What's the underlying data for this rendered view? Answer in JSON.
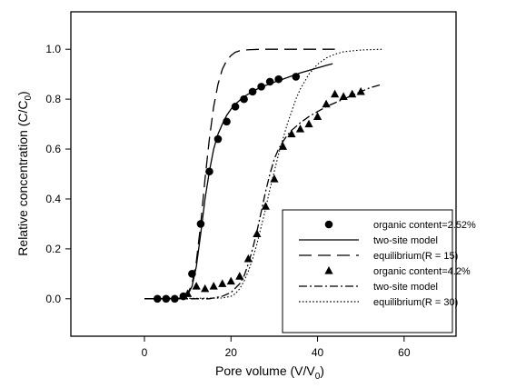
{
  "chart_data": {
    "type": "scatter",
    "title": "",
    "xlabel": "Pore volume (V/V",
    "xlabel_sub": "0",
    "xlabel_end": ")",
    "ylabel": "Relative concentration (C/C",
    "ylabel_sub": "0",
    "ylabel_end": ")",
    "xlim": [
      -17,
      72
    ],
    "ylim": [
      -0.15,
      1.15
    ],
    "xticks": [
      0,
      20,
      40,
      60
    ],
    "yticks": [
      0.0,
      0.2,
      0.4,
      0.6,
      0.8,
      1.0
    ],
    "xtick_labels": [
      "0",
      "20",
      "40",
      "60"
    ],
    "ytick_labels": [
      "0.0",
      "0.2",
      "0.4",
      "0.6",
      "0.8",
      "1.0"
    ],
    "grid": false,
    "legend_position": "bottom-right",
    "series": [
      {
        "name": "organic content=2.52%",
        "style": "markers",
        "marker": "circle",
        "x": [
          3,
          5,
          7,
          9,
          11,
          13,
          15,
          17,
          19,
          21,
          23,
          25,
          27,
          29,
          31,
          35
        ],
        "y": [
          0.0,
          0.0,
          0.0,
          0.01,
          0.1,
          0.3,
          0.51,
          0.64,
          0.71,
          0.77,
          0.8,
          0.83,
          0.85,
          0.87,
          0.88,
          0.89
        ]
      },
      {
        "name": "two-site model",
        "style": "solid",
        "x": [
          0,
          6,
          8,
          9,
          10,
          11,
          12,
          13,
          14,
          15,
          16,
          17,
          18,
          19,
          20,
          21,
          22,
          23,
          24,
          26,
          28,
          30,
          32,
          34,
          36,
          38,
          40,
          42,
          43.5
        ],
        "y": [
          0,
          0,
          0.002,
          0.005,
          0.015,
          0.05,
          0.13,
          0.26,
          0.4,
          0.51,
          0.6,
          0.66,
          0.7,
          0.735,
          0.76,
          0.78,
          0.795,
          0.81,
          0.82,
          0.84,
          0.855,
          0.868,
          0.88,
          0.893,
          0.905,
          0.915,
          0.925,
          0.935,
          0.942
        ]
      },
      {
        "name": "equilibrium(R = 15)",
        "style": "longdash",
        "x": [
          0,
          8,
          9,
          10,
          11,
          12,
          13,
          14,
          15,
          16,
          17,
          18,
          19,
          20,
          21,
          22,
          24,
          27,
          30,
          35,
          40,
          44
        ],
        "y": [
          0,
          0.002,
          0.008,
          0.02,
          0.06,
          0.15,
          0.3,
          0.48,
          0.64,
          0.77,
          0.86,
          0.92,
          0.955,
          0.975,
          0.988,
          0.994,
          0.998,
          1.0,
          1.0,
          1.0,
          1.0,
          1.0
        ]
      },
      {
        "name": "organic content=4.2%",
        "style": "markers",
        "marker": "triangle",
        "x": [
          10,
          12,
          14,
          16,
          18,
          20,
          22,
          24,
          26,
          28,
          30,
          32,
          34,
          36,
          38,
          40,
          42,
          44,
          46,
          48,
          50
        ],
        "y": [
          0.02,
          0.05,
          0.04,
          0.05,
          0.06,
          0.07,
          0.09,
          0.16,
          0.26,
          0.37,
          0.48,
          0.61,
          0.66,
          0.68,
          0.7,
          0.73,
          0.78,
          0.82,
          0.81,
          0.82,
          0.83
        ]
      },
      {
        "name": "two-site model",
        "style": "dashdot",
        "x": [
          0,
          15,
          18,
          20,
          22,
          23,
          24,
          25,
          26,
          27,
          28,
          29,
          30,
          31,
          32,
          33,
          34,
          35,
          36,
          38,
          40,
          42,
          44,
          46,
          48,
          50,
          52,
          55
        ],
        "y": [
          0,
          0,
          0.01,
          0.025,
          0.06,
          0.09,
          0.14,
          0.2,
          0.27,
          0.35,
          0.43,
          0.5,
          0.56,
          0.6,
          0.63,
          0.655,
          0.675,
          0.69,
          0.705,
          0.73,
          0.75,
          0.77,
          0.785,
          0.8,
          0.815,
          0.83,
          0.845,
          0.86
        ]
      },
      {
        "name": "equilibrium(R = 30)",
        "style": "dotted",
        "x": [
          0,
          18,
          20,
          21,
          22,
          23,
          24,
          25,
          26,
          27,
          28,
          29,
          30,
          31,
          32,
          33,
          34,
          35,
          36,
          37,
          38,
          39,
          40,
          42,
          44,
          46,
          50,
          55
        ],
        "y": [
          0,
          0.003,
          0.01,
          0.02,
          0.04,
          0.07,
          0.11,
          0.16,
          0.22,
          0.29,
          0.36,
          0.44,
          0.51,
          0.58,
          0.64,
          0.7,
          0.75,
          0.8,
          0.84,
          0.87,
          0.9,
          0.92,
          0.94,
          0.965,
          0.98,
          0.99,
          0.997,
          1.0
        ]
      }
    ]
  }
}
